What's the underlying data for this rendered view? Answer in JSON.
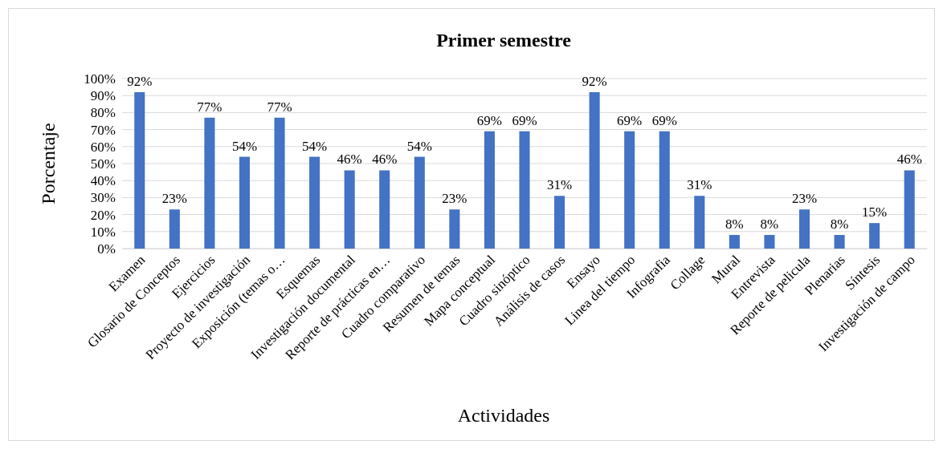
{
  "chart_data": {
    "type": "bar",
    "title": "Primer semestre",
    "xlabel": "Actividades",
    "ylabel": "Porcentaje",
    "categories": [
      "Examen",
      "Glosario de Conceptos",
      "Ejercicios",
      "Proyecto de investigación",
      "Exposición (temas o…",
      "Esquemas",
      "Investigación documental",
      "Reporte de prácticas en…",
      "Cuadro comparativo",
      "Resumen de temas",
      "Mapa conceptual",
      "Cuadro sinóptico",
      "Análisis de casos",
      "Ensayo",
      "Linea del tiempo",
      "Infografia",
      "Collage",
      "Mural",
      "Entrevista",
      "Reporte de pelicula",
      "Plenarias",
      "Síntesis",
      "Investigación de campo"
    ],
    "values": [
      92,
      23,
      77,
      54,
      77,
      54,
      46,
      46,
      54,
      23,
      69,
      69,
      31,
      92,
      69,
      69,
      31,
      8,
      8,
      23,
      8,
      15,
      46
    ],
    "value_labels": [
      "92%",
      "23%",
      "77%",
      "54%",
      "77%",
      "54%",
      "46%",
      "46%",
      "54%",
      "23%",
      "69%",
      "69%",
      "31%",
      "92%",
      "69%",
      "69%",
      "31%",
      "8%",
      "8%",
      "23%",
      "8%",
      "15%",
      "46%"
    ],
    "color": "#4472c4",
    "ylim": [
      0,
      100
    ],
    "yticks": [
      {
        "value": 0,
        "label": "0%"
      },
      {
        "value": 10,
        "label": "10%"
      },
      {
        "value": 20,
        "label": "20%"
      },
      {
        "value": 30,
        "label": "30%"
      },
      {
        "value": 40,
        "label": "40%"
      },
      {
        "value": 50,
        "label": "50%"
      },
      {
        "value": 60,
        "label": "60%"
      },
      {
        "value": 70,
        "label": "70%"
      },
      {
        "value": 80,
        "label": "80%"
      },
      {
        "value": 90,
        "label": "90%"
      },
      {
        "value": 100,
        "label": "100%"
      }
    ],
    "grid": "y"
  }
}
